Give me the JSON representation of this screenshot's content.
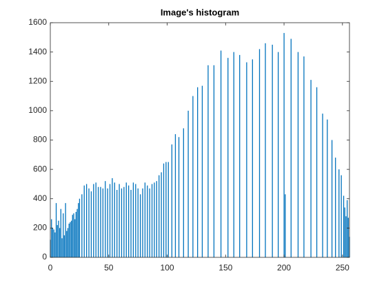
{
  "chart_data": {
    "type": "bar",
    "title": "Image's histogram",
    "color": "#0072bd",
    "x": [
      0,
      1,
      2,
      3,
      4,
      5,
      6,
      7,
      8,
      9,
      10,
      11,
      12,
      13,
      14,
      15,
      16,
      17,
      18,
      19,
      20,
      21,
      22,
      23,
      24,
      25,
      27,
      29,
      31,
      33,
      35,
      37,
      39,
      41,
      43,
      45,
      47,
      49,
      51,
      53,
      55,
      57,
      59,
      61,
      63,
      65,
      67,
      69,
      71,
      73,
      75,
      77,
      79,
      81,
      83,
      85,
      87,
      89,
      91,
      93,
      95,
      97,
      99,
      101,
      104,
      107,
      110,
      114,
      118,
      122,
      126,
      130,
      135,
      140,
      146,
      152,
      157,
      162,
      168,
      173,
      179,
      184,
      190,
      195,
      200,
      201,
      206,
      212,
      217,
      223,
      228,
      233,
      237,
      241,
      244,
      247,
      249,
      251,
      252,
      253,
      254,
      255,
      256
    ],
    "values": [
      120,
      260,
      200,
      190,
      170,
      370,
      220,
      250,
      200,
      330,
      130,
      300,
      150,
      370,
      180,
      200,
      230,
      240,
      250,
      290,
      300,
      260,
      310,
      330,
      370,
      400,
      430,
      490,
      500,
      470,
      450,
      500,
      510,
      480,
      480,
      470,
      520,
      470,
      500,
      540,
      510,
      460,
      500,
      470,
      480,
      510,
      490,
      460,
      510,
      500,
      470,
      430,
      470,
      510,
      490,
      470,
      500,
      510,
      520,
      560,
      580,
      640,
      650,
      650,
      770,
      840,
      820,
      880,
      1000,
      1100,
      1160,
      1170,
      1310,
      1310,
      1410,
      1360,
      1400,
      1380,
      1330,
      1350,
      1420,
      1460,
      1450,
      1400,
      1530,
      430,
      1490,
      1400,
      1370,
      1210,
      1160,
      980,
      940,
      800,
      680,
      600,
      560,
      420,
      340,
      280,
      390,
      270,
      140
    ],
    "xlim": [
      0,
      256
    ],
    "ylim": [
      0,
      1600
    ],
    "xticks": [
      0,
      50,
      100,
      150,
      200,
      250
    ],
    "yticks": [
      0,
      200,
      400,
      600,
      800,
      1000,
      1200,
      1400,
      1600
    ]
  }
}
